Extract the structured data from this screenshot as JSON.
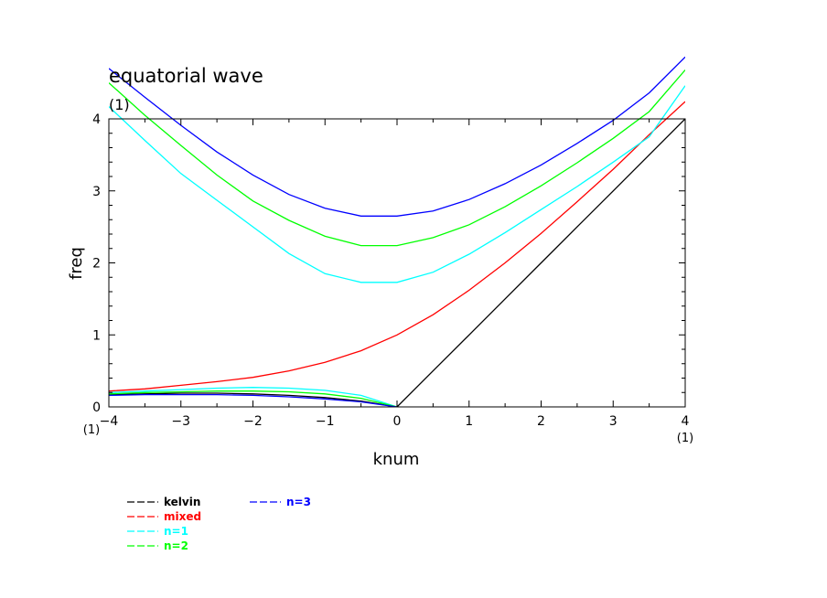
{
  "chart_data": {
    "type": "line",
    "title": "equatorial wave",
    "subtitle": "(1)",
    "xlabel": "knum",
    "ylabel": "freq",
    "x_unit_left": "(1)",
    "x_unit_right": "(1)",
    "xlim": [
      -4,
      4
    ],
    "ylim": [
      0,
      4
    ],
    "xticks": [
      -4,
      -3,
      -2,
      -1,
      0,
      1,
      2,
      3,
      4
    ],
    "yticks": [
      0,
      1,
      2,
      3,
      4
    ],
    "xtick_labels": [
      "−4",
      "−3",
      "−2",
      "−1",
      "0",
      "1",
      "2",
      "3",
      "4"
    ],
    "ytick_labels": [
      "0",
      "1",
      "2",
      "3",
      "4"
    ],
    "grid": false,
    "legend_position": "bottom-left",
    "series": [
      {
        "name": "kelvin",
        "color": "#000000",
        "x": [
          -4,
          -3.5,
          -3,
          -2.5,
          -2,
          -1.5,
          -1,
          -0.5,
          0,
          0.5,
          1,
          1.5,
          2,
          2.5,
          3,
          3.5,
          4
        ],
        "y": [
          0.17,
          0.18,
          0.19,
          0.19,
          0.18,
          0.16,
          0.13,
          0.08,
          0,
          0.5,
          1,
          1.5,
          2,
          2.5,
          3,
          3.5,
          4
        ]
      },
      {
        "name": "mixed",
        "color": "#ff0000",
        "x": [
          -4,
          -3.5,
          -3,
          -2.5,
          -2,
          -1.5,
          -1,
          -0.5,
          0,
          0.5,
          1,
          1.5,
          2,
          2.5,
          3,
          3.5,
          4
        ],
        "y": [
          0.22,
          0.25,
          0.3,
          0.35,
          0.41,
          0.5,
          0.62,
          0.78,
          1.0,
          1.28,
          1.62,
          2.0,
          2.41,
          2.85,
          3.3,
          3.78,
          4.24
        ]
      },
      {
        "name": "n=1",
        "color": "#00ffff",
        "x": [
          -4,
          -3.5,
          -3,
          -2.5,
          -2,
          -1.5,
          -1,
          -0.5,
          0,
          0.5,
          1,
          1.5,
          2,
          2.5,
          3,
          3.5,
          4
        ],
        "y": [
          4.17,
          3.7,
          3.24,
          2.87,
          2.5,
          2.13,
          1.85,
          1.73,
          1.73,
          1.87,
          2.12,
          2.42,
          2.74,
          3.06,
          3.4,
          3.75,
          4.46
        ]
      },
      {
        "name": "n=2",
        "color": "#00ff00",
        "x": [
          -4,
          -3.5,
          -3,
          -2.5,
          -2,
          -1.5,
          -1,
          -0.5,
          0,
          0.5,
          1,
          1.5,
          2,
          2.5,
          3,
          3.5,
          4
        ],
        "y": [
          4.5,
          4.05,
          3.63,
          3.22,
          2.86,
          2.59,
          2.37,
          2.24,
          2.24,
          2.35,
          2.53,
          2.78,
          3.07,
          3.39,
          3.73,
          4.1,
          4.68
        ]
      },
      {
        "name": "n=3",
        "color": "#0000ff",
        "x": [
          -4,
          -3.5,
          -3,
          -2.5,
          -2,
          -1.5,
          -1,
          -0.5,
          0,
          0.5,
          1,
          1.5,
          2,
          2.5,
          3,
          3.5,
          4
        ],
        "y": [
          4.7,
          4.3,
          3.91,
          3.54,
          3.22,
          2.95,
          2.76,
          2.65,
          2.65,
          2.72,
          2.88,
          3.1,
          3.36,
          3.66,
          3.98,
          4.36,
          4.86
        ]
      },
      {
        "name": "n=1 (lower)",
        "color": "#00ffff",
        "x": [
          -4,
          -3.5,
          -3,
          -2.5,
          -2,
          -1.5,
          -1,
          -0.5,
          0
        ],
        "y": [
          0.2,
          0.22,
          0.24,
          0.26,
          0.27,
          0.26,
          0.23,
          0.16,
          0
        ]
      },
      {
        "name": "n=2 (lower)",
        "color": "#00ff00",
        "x": [
          -4,
          -3.5,
          -3,
          -2.5,
          -2,
          -1.5,
          -1,
          -0.5,
          0
        ],
        "y": [
          0.18,
          0.2,
          0.21,
          0.22,
          0.22,
          0.21,
          0.18,
          0.12,
          0
        ]
      },
      {
        "name": "n=3 (lower)",
        "color": "#0000ff",
        "x": [
          -4,
          -3.5,
          -3,
          -2.5,
          -2,
          -1.5,
          -1,
          -0.5,
          0
        ],
        "y": [
          0.16,
          0.17,
          0.17,
          0.17,
          0.16,
          0.14,
          0.11,
          0.07,
          0
        ]
      }
    ],
    "legend": [
      {
        "label": "kelvin",
        "color": "#000000"
      },
      {
        "label": "mixed",
        "color": "#ff0000"
      },
      {
        "label": "n=1",
        "color": "#00ffff"
      },
      {
        "label": "n=2",
        "color": "#00ff00"
      },
      {
        "label": "n=3",
        "color": "#0000ff"
      }
    ]
  }
}
